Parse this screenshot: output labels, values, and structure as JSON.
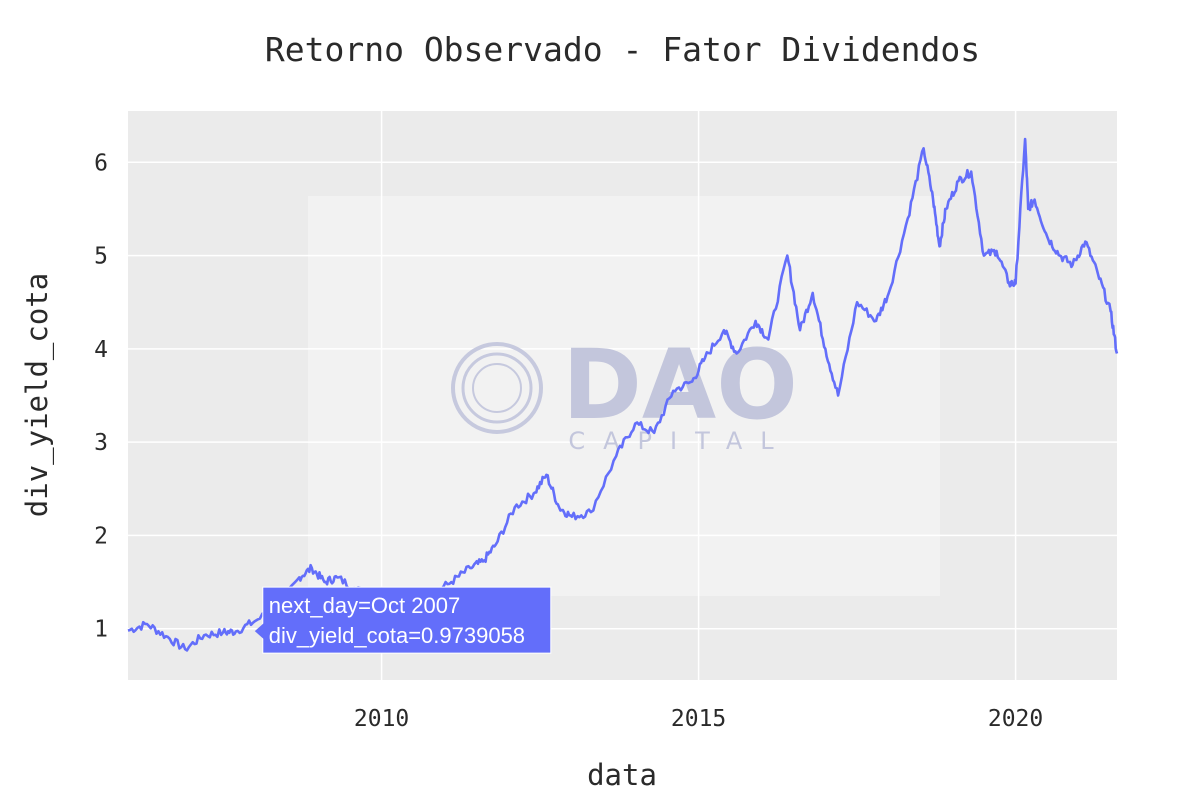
{
  "chart_data": {
    "type": "line",
    "title": "Retorno Observado - Fator Dividendos",
    "xlabel": "data",
    "ylabel": "div_yield_cota",
    "x_ticks": [
      2010,
      2015,
      2020
    ],
    "y_ticks": [
      1,
      2,
      3,
      4,
      5,
      6
    ],
    "xlim": [
      2006.0,
      2021.6
    ],
    "ylim": [
      0.45,
      6.55
    ],
    "grid": true,
    "line_color": "#636efa",
    "background": "#ebebeb",
    "series": [
      {
        "x": [
          2006.0,
          2006.3,
          2006.6,
          2006.9,
          2007.2,
          2007.5,
          2007.7,
          2008.0,
          2008.4,
          2008.7,
          2008.9,
          2009.1,
          2009.3,
          2009.6,
          2009.9,
          2010.2,
          2010.5,
          2010.8,
          2011.1,
          2011.4,
          2011.6,
          2011.8,
          2012.1,
          2012.4,
          2012.6,
          2012.8,
          2013.0,
          2013.3,
          2013.7,
          2014.0,
          2014.3,
          2014.6,
          2014.9,
          2015.1,
          2015.4,
          2015.6,
          2015.9,
          2016.1,
          2016.4,
          2016.6,
          2016.8,
          2017.0,
          2017.2,
          2017.5,
          2017.8,
          2018.0,
          2018.3,
          2018.55,
          2018.7,
          2018.8,
          2018.9,
          2019.1,
          2019.3,
          2019.5,
          2019.7,
          2019.9,
          2020.0,
          2020.15,
          2020.2,
          2020.3,
          2020.5,
          2020.7,
          2020.9,
          2021.1,
          2021.3,
          2021.5,
          2021.6
        ],
        "y": [
          0.98,
          1.05,
          0.92,
          0.78,
          0.93,
          0.96,
          0.97,
          1.08,
          1.25,
          1.55,
          1.65,
          1.5,
          1.55,
          1.42,
          1.35,
          1.3,
          1.28,
          1.38,
          1.5,
          1.65,
          1.72,
          1.9,
          2.3,
          2.45,
          2.65,
          2.3,
          2.2,
          2.25,
          2.85,
          3.2,
          3.1,
          3.55,
          3.65,
          3.9,
          4.2,
          3.95,
          4.3,
          4.1,
          5.0,
          4.2,
          4.6,
          4.0,
          3.5,
          4.5,
          4.3,
          4.6,
          5.4,
          6.15,
          5.6,
          5.1,
          5.5,
          5.8,
          5.9,
          5.0,
          5.05,
          4.7,
          4.7,
          6.25,
          5.5,
          5.6,
          5.2,
          5.0,
          4.9,
          5.15,
          4.8,
          4.4,
          3.95
        ]
      }
    ],
    "tooltip": {
      "line1": "next_day=Oct 2007",
      "line2": "div_yield_cota=0.9739058",
      "x": 2008.0,
      "y": 0.9739058
    },
    "watermark": {
      "main": "DAO",
      "sub": "CAPITAL"
    }
  }
}
